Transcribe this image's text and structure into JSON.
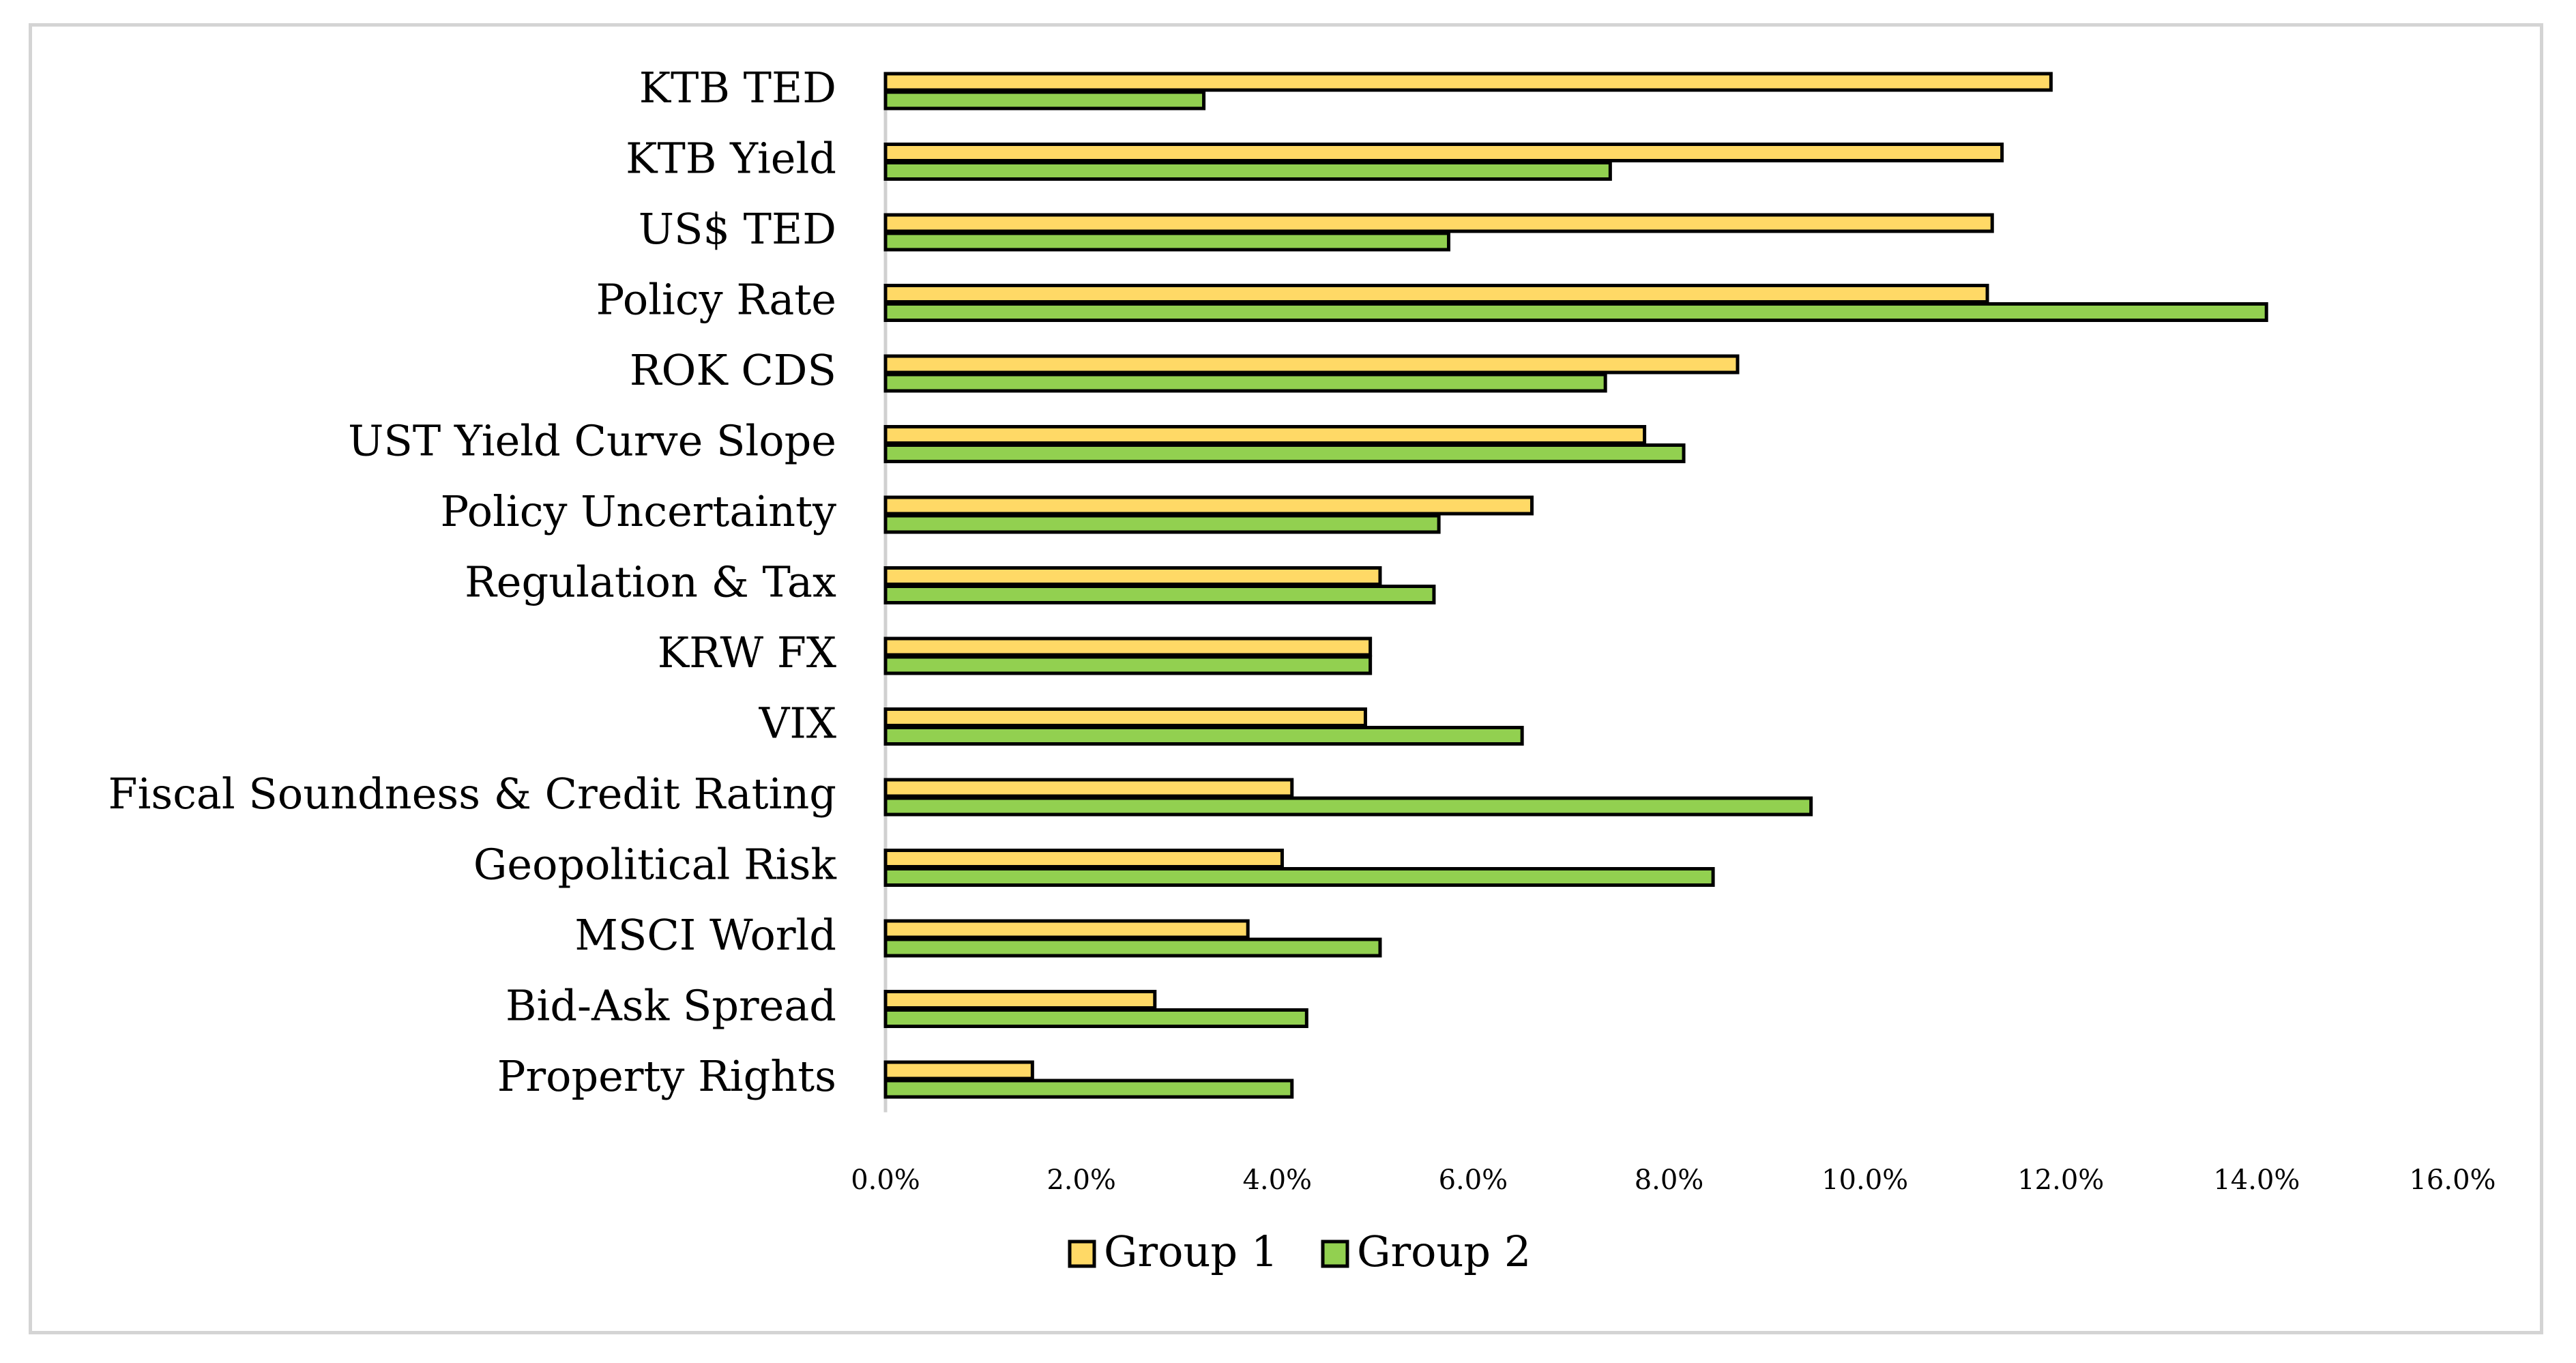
{
  "chart_data": {
    "type": "bar",
    "orientation": "horizontal",
    "title": "",
    "xlabel": "",
    "ylabel": "",
    "xlim": [
      0,
      16
    ],
    "x_ticks": [
      "0.0%",
      "2.0%",
      "4.0%",
      "6.0%",
      "8.0%",
      "10.0%",
      "12.0%",
      "14.0%",
      "16.0%"
    ],
    "categories": [
      "KTB TED",
      "KTB Yield",
      "US$ TED",
      "Policy Rate",
      "ROK CDS",
      "UST Yield Curve Slope",
      "Policy Uncertainty",
      "Regulation & Tax",
      "KRW FX",
      "VIX",
      "Fiscal Soundness & Credit Rating",
      "Geopolitical Risk",
      "MSCI World",
      "Bid-Ask Spread",
      "Property Rights"
    ],
    "series": [
      {
        "name": "Group 1",
        "color": "#ffd966",
        "values": [
          11.9,
          11.4,
          11.3,
          11.25,
          8.7,
          7.75,
          6.6,
          5.05,
          4.95,
          4.9,
          4.15,
          4.05,
          3.7,
          2.75,
          1.5
        ]
      },
      {
        "name": "Group 2",
        "color": "#92d050",
        "values": [
          3.25,
          7.4,
          5.75,
          14.1,
          7.35,
          8.15,
          5.65,
          5.6,
          4.95,
          6.5,
          9.45,
          8.45,
          5.05,
          4.3,
          4.15
        ]
      }
    ],
    "grid": false,
    "legend_position": "bottom-center"
  }
}
